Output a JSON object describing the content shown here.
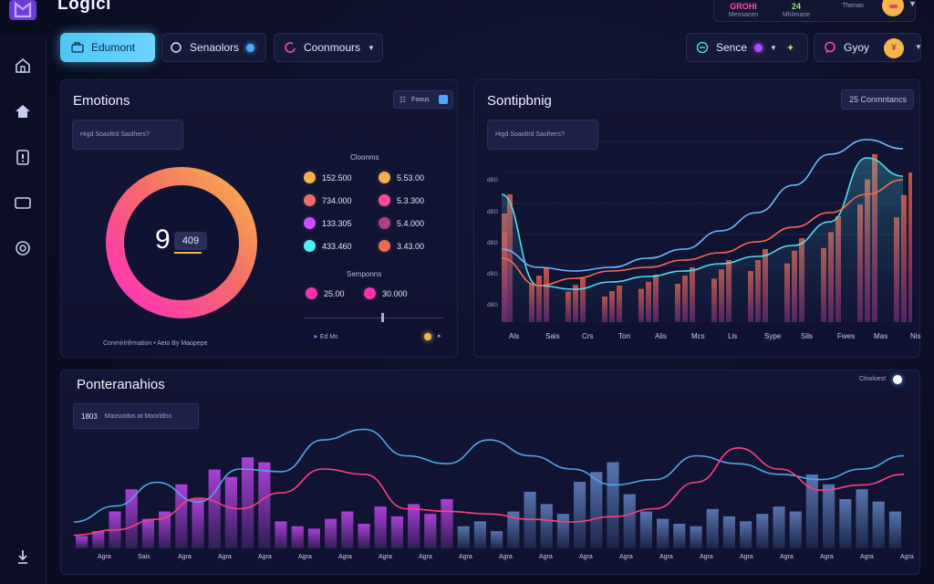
{
  "app": {
    "title": "Logici"
  },
  "header_stats": [
    {
      "value": "GROHI",
      "label": "Mensaceo",
      "color": "#ff4b9e"
    },
    {
      "value": "24",
      "label": "Mhilmane",
      "color": "#9ee86a"
    },
    {
      "value": "",
      "label": "Thenao",
      "color": "#ffffff"
    }
  ],
  "toolbar": {
    "left": [
      {
        "label": "Edumont",
        "icon": "folder-icon",
        "active": true
      },
      {
        "label": "Senaolors",
        "icon": "circle-icon",
        "dot_color": "#4aa8ff"
      },
      {
        "label": "Coonmours",
        "icon": "ring-icon",
        "caret": true
      }
    ],
    "right": [
      {
        "label": "Sence",
        "icon": "link-icon",
        "dot_color": "#b04cff",
        "caret": true,
        "extra_icon": "sparkle-icon"
      },
      {
        "label": "Gyoy",
        "icon": "chat-icon"
      }
    ]
  },
  "sidebar": [
    "home-icon",
    "house-icon",
    "clipboard-icon",
    "tv-icon",
    "gauge-icon",
    "download-icon"
  ],
  "emotions": {
    "title": "Emotions",
    "badge": "Foous",
    "hint": "Higd Soaoltrd Saolhers?",
    "donut_value": "9",
    "donut_sub": "409",
    "footer": "Conmirinfrmation  •  Aeio By Maopepe",
    "legend_title": "Cloonms",
    "legend": [
      {
        "label": "152.500",
        "color": "#f6b04c"
      },
      {
        "label": "5.53.00",
        "color": "#f6b04c"
      },
      {
        "label": "734.000",
        "color": "#f26a6a"
      },
      {
        "label": "5.3.300",
        "color": "#ff4b9e"
      },
      {
        "label": "133.305",
        "color": "#d04cff"
      },
      {
        "label": "5.4.000",
        "color": "#b0407e"
      },
      {
        "label": "433.460",
        "color": "#4df0f6"
      },
      {
        "label": "3.43.00",
        "color": "#f06a4b"
      }
    ],
    "sub_title": "Semponns",
    "sub_legend": [
      {
        "label": "25.00",
        "color": "#ff2fb0"
      },
      {
        "label": "30.000",
        "color": "#ff2fb0"
      }
    ],
    "slider_value": 0.55,
    "tiny_label": "Ed Ms"
  },
  "sontipbnig": {
    "title": "Sontipbnig",
    "badge": "25  Conmntancs",
    "hint": "Higd Soaoltrd Saolhers?",
    "y_ticks": [
      "dBG",
      "dBG",
      "dBG",
      "dBG",
      "dBG"
    ],
    "chart_data": {
      "type": "area",
      "categories": [
        "Als",
        "Sais",
        "Crs",
        "Ton",
        "Alis",
        "Mcs",
        "Lis",
        "Sype",
        "Sils",
        "Fwes",
        "Mas",
        "Nis"
      ],
      "series": [
        {
          "values": [
            70,
            20,
            18,
            22,
            25,
            28,
            32,
            36,
            42,
            55,
            90,
            80
          ]
        },
        {
          "values": [
            40,
            30,
            28,
            30,
            35,
            40,
            50,
            60,
            75,
            92,
            100,
            95
          ]
        },
        {
          "values": [
            35,
            20,
            24,
            28,
            30,
            34,
            38,
            44,
            52,
            60,
            70,
            78
          ]
        }
      ],
      "bars": [
        70,
        30,
        24,
        20,
        26,
        30,
        34,
        40,
        46,
        58,
        92,
        82
      ]
    }
  },
  "ponteranahios": {
    "title": "Ponteranahios",
    "badge": "Clnoloest",
    "hint_label": "1803",
    "hint": "Maosoidos at Moorldiss",
    "chart_data": {
      "type": "bar",
      "categories": [
        "Agra",
        "Sais",
        "Agra",
        "Agra",
        "Agra",
        "Agra",
        "Agra",
        "Agra",
        "Agra",
        "Agra",
        "Agra",
        "Agra",
        "Agra",
        "Agra",
        "Agra",
        "Agra",
        "Agra",
        "Agra",
        "Agra",
        "Agra",
        "Agra"
      ],
      "bars": [
        10,
        14,
        30,
        48,
        24,
        30,
        52,
        40,
        64,
        58,
        74,
        70,
        22,
        18,
        16,
        24,
        30,
        20,
        34,
        26,
        36,
        28,
        40,
        18,
        22,
        14,
        30,
        46,
        36,
        28,
        54,
        62,
        70,
        44,
        30,
        24,
        20,
        18,
        32,
        26,
        22,
        28,
        34,
        30,
        60,
        52,
        40,
        48,
        38,
        30
      ],
      "series": [
        {
          "values": [
            20,
            32,
            50,
            35,
            60,
            58,
            82,
            90,
            70,
            64,
            82,
            70,
            60,
            48,
            52,
            70,
            64,
            56,
            52,
            60,
            70
          ]
        },
        {
          "values": [
            10,
            14,
            22,
            38,
            30,
            42,
            60,
            56,
            30,
            28,
            26,
            22,
            20,
            24,
            30,
            50,
            76,
            60,
            44,
            48,
            56
          ]
        }
      ]
    }
  }
}
